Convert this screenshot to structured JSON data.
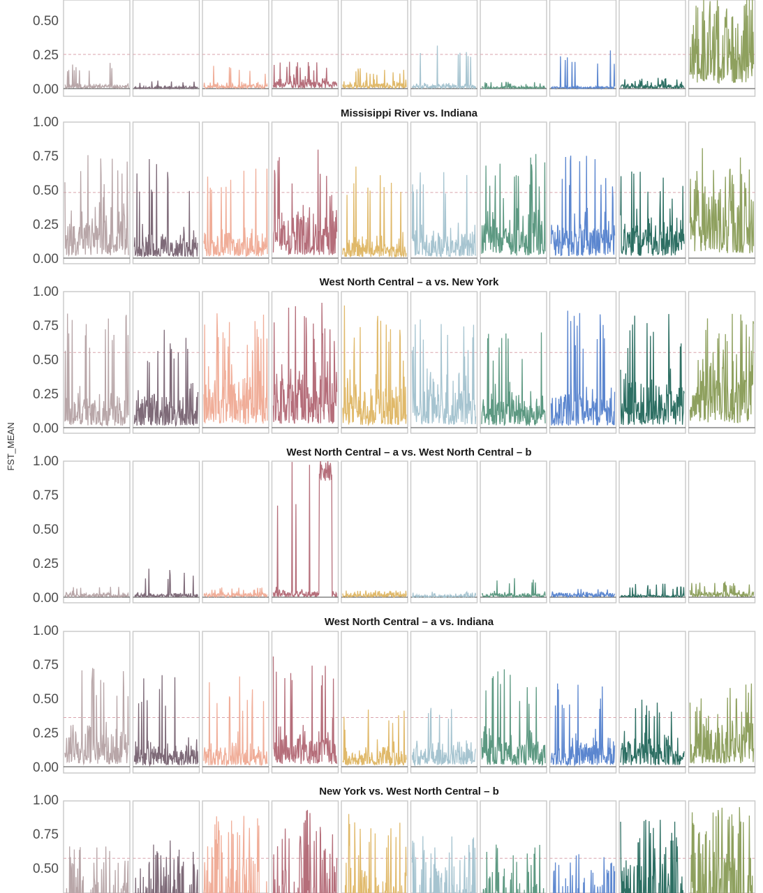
{
  "y_axis_label": "FST_MEAN",
  "chart_data": [
    {
      "type": "line",
      "title": "",
      "ylabel": "FST_MEAN",
      "ylim": [
        -0.05,
        0.65
      ],
      "yticks": [
        "0.00",
        "0.25",
        "0.50"
      ],
      "threshold": 0.25,
      "facets": 10,
      "series": [
        {
          "color": "#b8a6a8",
          "level": 0.02,
          "max": 0.2
        },
        {
          "color": "#7e6a78",
          "level": 0.01,
          "max": 0.06
        },
        {
          "color": "#f0ad98",
          "level": 0.02,
          "max": 0.18
        },
        {
          "color": "#b56e7a",
          "level": 0.05,
          "max": 0.2
        },
        {
          "color": "#e0b96a",
          "level": 0.03,
          "max": 0.15
        },
        {
          "color": "#a6c4d0",
          "level": 0.02,
          "max": 0.38
        },
        {
          "color": "#5d9982",
          "level": 0.01,
          "max": 0.05
        },
        {
          "color": "#5b86cf",
          "level": 0.01,
          "max": 0.28
        },
        {
          "color": "#2d6f63",
          "level": 0.02,
          "max": 0.08
        },
        {
          "color": "#8ea05e",
          "level": 0.35,
          "max": 0.65
        }
      ]
    },
    {
      "type": "line",
      "title": "Missisippi River vs. Indiana",
      "ylabel": "FST_MEAN",
      "ylim": [
        -0.02,
        1.0
      ],
      "yticks": [
        "0.00",
        "0.25",
        "0.50",
        "0.75",
        "1.00"
      ],
      "threshold": 0.48,
      "facets": 10,
      "series": [
        {
          "color": "#b8a6a8",
          "level": 0.2,
          "max": 0.77
        },
        {
          "color": "#7e6a78",
          "level": 0.1,
          "max": 0.74
        },
        {
          "color": "#f0ad98",
          "level": 0.12,
          "max": 0.68
        },
        {
          "color": "#b56e7a",
          "level": 0.22,
          "max": 0.8
        },
        {
          "color": "#e0b96a",
          "level": 0.08,
          "max": 0.68
        },
        {
          "color": "#a6c4d0",
          "level": 0.12,
          "max": 0.64
        },
        {
          "color": "#5d9982",
          "level": 0.18,
          "max": 0.8
        },
        {
          "color": "#5b86cf",
          "level": 0.18,
          "max": 0.8
        },
        {
          "color": "#2d6f63",
          "level": 0.18,
          "max": 0.64
        },
        {
          "color": "#8ea05e",
          "level": 0.35,
          "max": 0.83
        }
      ]
    },
    {
      "type": "line",
      "title": "West North Central – a vs. New York",
      "ylabel": "FST_MEAN",
      "ylim": [
        -0.02,
        1.0
      ],
      "yticks": [
        "0.00",
        "0.25",
        "0.50",
        "0.75",
        "1.00"
      ],
      "threshold": 0.55,
      "facets": 10,
      "series": [
        {
          "color": "#b8a6a8",
          "level": 0.15,
          "max": 0.9
        },
        {
          "color": "#7e6a78",
          "level": 0.15,
          "max": 0.72
        },
        {
          "color": "#f0ad98",
          "level": 0.28,
          "max": 0.84
        },
        {
          "color": "#b56e7a",
          "level": 0.28,
          "max": 0.92
        },
        {
          "color": "#e0b96a",
          "level": 0.2,
          "max": 0.9
        },
        {
          "color": "#a6c4d0",
          "level": 0.22,
          "max": 0.84
        },
        {
          "color": "#5d9982",
          "level": 0.15,
          "max": 0.72
        },
        {
          "color": "#5b86cf",
          "level": 0.15,
          "max": 0.86
        },
        {
          "color": "#2d6f63",
          "level": 0.2,
          "max": 0.88
        },
        {
          "color": "#8ea05e",
          "level": 0.35,
          "max": 0.9
        }
      ]
    },
    {
      "type": "line",
      "title": "West North Central – a vs. West North Central – b",
      "ylabel": "FST_MEAN",
      "ylim": [
        -0.02,
        1.0
      ],
      "yticks": [
        "0.00",
        "0.25",
        "0.50",
        "0.75",
        "1.00"
      ],
      "threshold": null,
      "facets": 10,
      "series": [
        {
          "color": "#b8a6a8",
          "level": 0.02,
          "max": 0.09
        },
        {
          "color": "#7e6a78",
          "level": 0.02,
          "max": 0.21
        },
        {
          "color": "#f0ad98",
          "level": 0.02,
          "max": 0.08
        },
        {
          "color": "#b56e7a",
          "level": 0.03,
          "max": 1.0,
          "spike": [
            0.72,
            0.92,
            0.85
          ]
        },
        {
          "color": "#e0b96a",
          "level": 0.02,
          "max": 0.05
        },
        {
          "color": "#a6c4d0",
          "level": 0.01,
          "max": 0.04
        },
        {
          "color": "#5d9982",
          "level": 0.02,
          "max": 0.16
        },
        {
          "color": "#5b86cf",
          "level": 0.02,
          "max": 0.08
        },
        {
          "color": "#2d6f63",
          "level": 0.01,
          "max": 0.1
        },
        {
          "color": "#8ea05e",
          "level": 0.03,
          "max": 0.12
        }
      ]
    },
    {
      "type": "line",
      "title": "West North Central – a vs. Indiana",
      "ylabel": "FST_MEAN",
      "ylim": [
        -0.02,
        1.0
      ],
      "yticks": [
        "0.00",
        "0.25",
        "0.50",
        "0.75",
        "1.00"
      ],
      "threshold": 0.36,
      "facets": 10,
      "series": [
        {
          "color": "#b8a6a8",
          "level": 0.18,
          "max": 0.74
        },
        {
          "color": "#7e6a78",
          "level": 0.1,
          "max": 0.68
        },
        {
          "color": "#f0ad98",
          "level": 0.1,
          "max": 0.66
        },
        {
          "color": "#b56e7a",
          "level": 0.18,
          "max": 0.82
        },
        {
          "color": "#e0b96a",
          "level": 0.08,
          "max": 0.42
        },
        {
          "color": "#a6c4d0",
          "level": 0.1,
          "max": 0.54
        },
        {
          "color": "#5d9982",
          "level": 0.14,
          "max": 0.72
        },
        {
          "color": "#5b86cf",
          "level": 0.12,
          "max": 0.62
        },
        {
          "color": "#2d6f63",
          "level": 0.12,
          "max": 0.52
        },
        {
          "color": "#8ea05e",
          "level": 0.22,
          "max": 0.68
        }
      ]
    },
    {
      "type": "line",
      "title": "New York vs. West North Central – b",
      "ylabel": "FST_MEAN",
      "ylim": [
        0.37,
        1.0
      ],
      "yticks": [
        "0.50",
        "0.75",
        "1.00"
      ],
      "threshold": 0.57,
      "facets": 10,
      "series": [
        {
          "color": "#b8a6a8",
          "level": 0.3,
          "max": 0.72
        },
        {
          "color": "#7e6a78",
          "level": 0.3,
          "max": 0.7
        },
        {
          "color": "#f0ad98",
          "level": 0.35,
          "max": 0.88
        },
        {
          "color": "#b56e7a",
          "level": 0.38,
          "max": 0.98
        },
        {
          "color": "#e0b96a",
          "level": 0.3,
          "max": 0.9
        },
        {
          "color": "#a6c4d0",
          "level": 0.35,
          "max": 0.82
        },
        {
          "color": "#5d9982",
          "level": 0.3,
          "max": 0.68
        },
        {
          "color": "#5b86cf",
          "level": 0.28,
          "max": 0.6
        },
        {
          "color": "#2d6f63",
          "level": 0.38,
          "max": 0.88
        },
        {
          "color": "#8ea05e",
          "level": 0.5,
          "max": 0.98
        }
      ]
    }
  ]
}
